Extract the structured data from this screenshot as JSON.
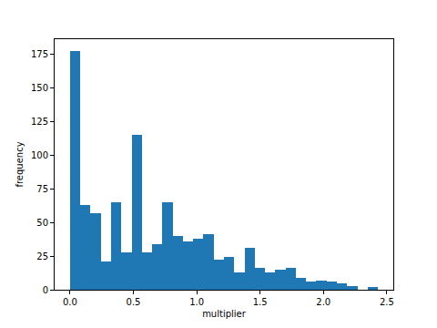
{
  "chart_data": {
    "type": "histogram",
    "x_label": "multiplier",
    "y_label": "frequency",
    "bins": [
      0,
      0.081,
      0.162,
      0.243,
      0.324,
      0.405,
      0.486,
      0.567,
      0.648,
      0.729,
      0.81,
      0.891,
      0.972,
      1.053,
      1.134,
      1.215,
      1.296,
      1.377,
      1.458,
      1.539,
      1.62,
      1.701,
      1.782,
      1.863,
      1.944,
      2.025,
      2.106,
      2.187,
      2.268,
      2.349,
      2.43
    ],
    "values": [
      177,
      63,
      57,
      21,
      65,
      28,
      115,
      28,
      34,
      65,
      40,
      36,
      38,
      41,
      22,
      24,
      13,
      31,
      16,
      13,
      15,
      16,
      9,
      6,
      7,
      6,
      5,
      3,
      0,
      2
    ],
    "color": "#1f77b4",
    "xlim": [
      -0.1215,
      2.5515
    ],
    "xticks": [
      {
        "value": 0,
        "label": "0.0"
      },
      {
        "value": 0.5,
        "label": "0.5"
      },
      {
        "value": 1,
        "label": "1.0"
      },
      {
        "value": 1.5,
        "label": "1.5"
      },
      {
        "value": 2,
        "label": "2.0"
      },
      {
        "value": 2.5,
        "label": "2.5"
      }
    ],
    "ylim": [
      0,
      185.85
    ],
    "yticks": [
      0,
      25,
      50,
      75,
      100,
      125,
      150,
      175
    ],
    "grid": false
  }
}
